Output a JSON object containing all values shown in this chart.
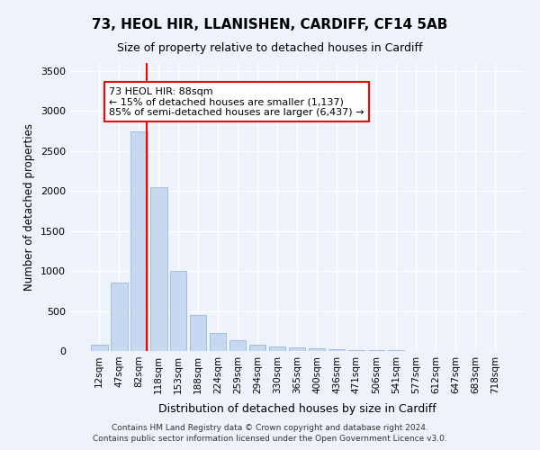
{
  "title1": "73, HEOL HIR, LLANISHEN, CARDIFF, CF14 5AB",
  "title2": "Size of property relative to detached houses in Cardiff",
  "xlabel": "Distribution of detached houses by size in Cardiff",
  "ylabel": "Number of detached properties",
  "categories": [
    "12sqm",
    "47sqm",
    "82sqm",
    "118sqm",
    "153sqm",
    "188sqm",
    "224sqm",
    "259sqm",
    "294sqm",
    "330sqm",
    "365sqm",
    "400sqm",
    "436sqm",
    "471sqm",
    "506sqm",
    "541sqm",
    "577sqm",
    "612sqm",
    "647sqm",
    "683sqm",
    "718sqm"
  ],
  "values": [
    75,
    850,
    2750,
    2050,
    1000,
    450,
    220,
    140,
    80,
    55,
    40,
    30,
    20,
    15,
    10,
    8,
    5,
    4,
    3,
    2,
    2
  ],
  "bar_color": "#c6d9f0",
  "bar_edge_color": "#9ab8d8",
  "vline_x": 2.4,
  "vline_color": "red",
  "annotation_text": "73 HEOL HIR: 88sqm\n← 15% of detached houses are smaller (1,137)\n85% of semi-detached houses are larger (6,437) →",
  "annotation_box_color": "white",
  "annotation_box_edge_color": "red",
  "ylim": [
    0,
    3600
  ],
  "yticks": [
    0,
    500,
    1000,
    1500,
    2000,
    2500,
    3000,
    3500
  ],
  "footer1": "Contains HM Land Registry data © Crown copyright and database right 2024.",
  "footer2": "Contains public sector information licensed under the Open Government Licence v3.0.",
  "background_color": "#eef2fb",
  "grid_color": "white"
}
